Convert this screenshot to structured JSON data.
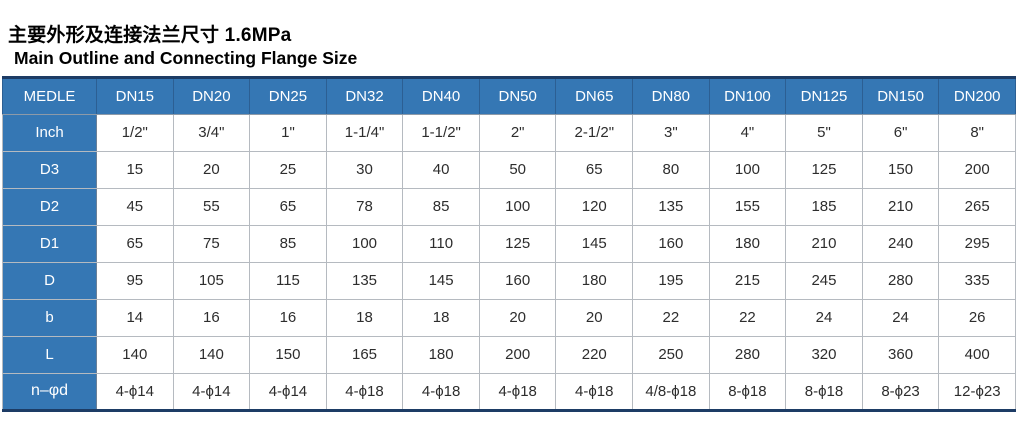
{
  "page": {
    "title_cn": "主要外形及连接法兰尺寸 1.6MPa",
    "title_en": "Main Outline and Connecting Flange Size"
  },
  "colors": {
    "header_blue": "#3577b4",
    "border_navy": "#1d3c65",
    "cell_border": "#b5bac0",
    "cell_text": "#2d2d2d"
  },
  "table": {
    "corner_label": "MEDLE",
    "columns": [
      "DN15",
      "DN20",
      "DN25",
      "DN32",
      "DN40",
      "DN50",
      "DN65",
      "DN80",
      "DN100",
      "DN125",
      "DN150",
      "DN200"
    ],
    "rows": [
      {
        "label": "Inch",
        "values": [
          "1/2\"",
          "3/4\"",
          "1\"",
          "1-1/4\"",
          "1-1/2\"",
          "2\"",
          "2-1/2\"",
          "3\"",
          "4\"",
          "5\"",
          "6\"",
          "8\""
        ]
      },
      {
        "label": "D3",
        "values": [
          "15",
          "20",
          "25",
          "30",
          "40",
          "50",
          "65",
          "80",
          "100",
          "125",
          "150",
          "200"
        ]
      },
      {
        "label": "D2",
        "values": [
          "45",
          "55",
          "65",
          "78",
          "85",
          "100",
          "120",
          "135",
          "155",
          "185",
          "210",
          "265"
        ]
      },
      {
        "label": "D1",
        "values": [
          "65",
          "75",
          "85",
          "100",
          "110",
          "125",
          "145",
          "160",
          "180",
          "210",
          "240",
          "295"
        ]
      },
      {
        "label": "D",
        "values": [
          "95",
          "105",
          "115",
          "135",
          "145",
          "160",
          "180",
          "195",
          "215",
          "245",
          "280",
          "335"
        ]
      },
      {
        "label": "b",
        "values": [
          "14",
          "16",
          "16",
          "18",
          "18",
          "20",
          "20",
          "22",
          "22",
          "24",
          "24",
          "26"
        ]
      },
      {
        "label": "L",
        "values": [
          "140",
          "140",
          "150",
          "165",
          "180",
          "200",
          "220",
          "250",
          "280",
          "320",
          "360",
          "400"
        ]
      },
      {
        "label": "n–φd",
        "values": [
          "4-ϕ14",
          "4-ϕ14",
          "4-ϕ14",
          "4-ϕ18",
          "4-ϕ18",
          "4-ϕ18",
          "4-ϕ18",
          "4/8-ϕ18",
          "8-ϕ18",
          "8-ϕ18",
          "8-ϕ23",
          "12-ϕ23"
        ]
      }
    ]
  }
}
